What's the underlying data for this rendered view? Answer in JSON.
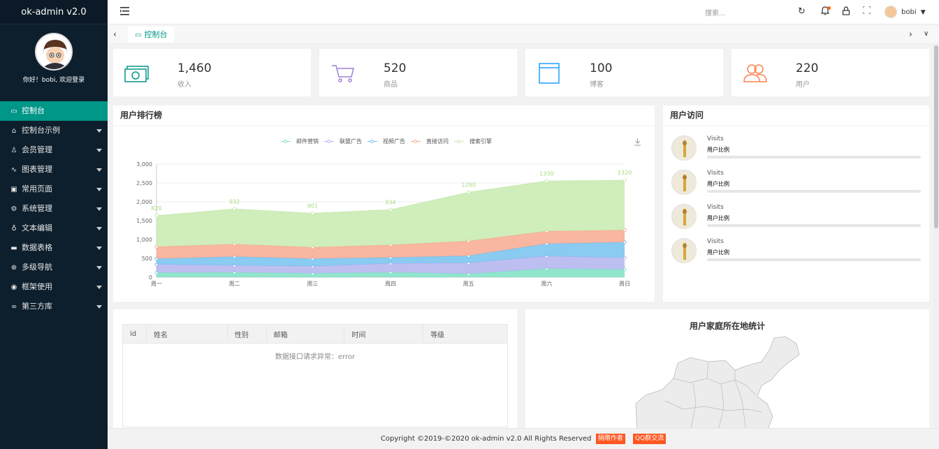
{
  "sidebar": {
    "logo": "ok-admin v2.0",
    "greeting": "你好！bobi, 欢迎登录",
    "items": [
      {
        "label": "控制台",
        "icon": "monitor-icon",
        "glyph": "▭",
        "active": true,
        "arrow": false
      },
      {
        "label": "控制台示例",
        "icon": "home-icon",
        "glyph": "⌂",
        "active": false,
        "arrow": true
      },
      {
        "label": "会员管理",
        "icon": "user-icon",
        "glyph": "♙",
        "active": false,
        "arrow": true
      },
      {
        "label": "图表管理",
        "icon": "chart-icon",
        "glyph": "∿",
        "active": false,
        "arrow": true
      },
      {
        "label": "常用页面",
        "icon": "car-icon",
        "glyph": "▣",
        "active": false,
        "arrow": true
      },
      {
        "label": "系统管理",
        "icon": "gear-icon",
        "glyph": "⚙",
        "active": false,
        "arrow": true
      },
      {
        "label": "文本编辑",
        "icon": "edit-icon",
        "glyph": "♁",
        "active": false,
        "arrow": true
      },
      {
        "label": "数据表格",
        "icon": "table-icon",
        "glyph": "▬",
        "active": false,
        "arrow": true
      },
      {
        "label": "多级导航",
        "icon": "nav-icon",
        "glyph": "⊕",
        "active": false,
        "arrow": true
      },
      {
        "label": "框架使用",
        "icon": "frame-icon",
        "glyph": "◉",
        "active": false,
        "arrow": true
      },
      {
        "label": "第三方库",
        "icon": "link-icon",
        "glyph": "∞",
        "active": false,
        "arrow": true
      }
    ]
  },
  "header": {
    "search_placeholder": "搜索...",
    "user_name": "bobi",
    "icons": [
      "menu-toggle-icon",
      "refresh-icon",
      "bell-icon",
      "lock-icon",
      "fullscreen-icon"
    ]
  },
  "tabs": {
    "active_label": "控制台"
  },
  "stats": [
    {
      "value": "1,460",
      "label": "收入",
      "icon": "money-icon",
      "color": "#009688"
    },
    {
      "value": "520",
      "label": "商品",
      "icon": "cart-icon",
      "color": "#9e7fd6"
    },
    {
      "value": "100",
      "label": "博客",
      "icon": "blog-icon",
      "color": "#1e9fff"
    },
    {
      "value": "220",
      "label": "用户",
      "icon": "users-icon",
      "color": "#ff7f50"
    }
  ],
  "ranking": {
    "title": "用户排行榜"
  },
  "chart_data": {
    "type": "area",
    "stacked": true,
    "categories": [
      "周一",
      "周二",
      "周三",
      "周四",
      "周五",
      "周六",
      "周日"
    ],
    "ylim": [
      0,
      3000
    ],
    "yticks": [
      "0",
      "500",
      "1,000",
      "1,500",
      "2,000",
      "2,500",
      "3,000"
    ],
    "legend_position": "top",
    "series": [
      {
        "name": "邮件营销",
        "color": "#7ee0c4",
        "values": [
          120,
          132,
          101,
          134,
          90,
          230,
          210
        ]
      },
      {
        "name": "联盟广告",
        "color": "#b3b4ee",
        "values": [
          220,
          182,
          191,
          234,
          290,
          330,
          310
        ]
      },
      {
        "name": "视频广告",
        "color": "#76c2ee",
        "values": [
          150,
          232,
          201,
          154,
          190,
          330,
          410
        ]
      },
      {
        "name": "直接访问",
        "color": "#f8a98f",
        "values": [
          320,
          332,
          301,
          334,
          390,
          330,
          320
        ]
      },
      {
        "name": "搜索引擎",
        "color": "#c8eab0",
        "values": [
          820,
          932,
          901,
          934,
          1290,
          1330,
          1320
        ]
      }
    ],
    "top_labels": [
      "820",
      "932",
      "901",
      "934",
      "1290",
      "1330",
      "1320"
    ]
  },
  "visits": {
    "title": "用户访问",
    "rows": [
      {
        "title": "Visits",
        "subtitle": "用户比例"
      },
      {
        "title": "Visits",
        "subtitle": "用户比例"
      },
      {
        "title": "Visits",
        "subtitle": "用户比例"
      },
      {
        "title": "Visits",
        "subtitle": "用户比例"
      }
    ]
  },
  "table": {
    "columns": [
      "id",
      "姓名",
      "性别",
      "邮箱",
      "时间",
      "等级"
    ],
    "empty_text": "数据接口请求异常：error"
  },
  "map": {
    "title": "用户家庭所在地统计"
  },
  "footer": {
    "copyright": "Copyright ©2019-©2020 ok-admin v2.0 All Rights Reserved",
    "donate": "捐赠作者",
    "qq": "QQ群交流"
  }
}
